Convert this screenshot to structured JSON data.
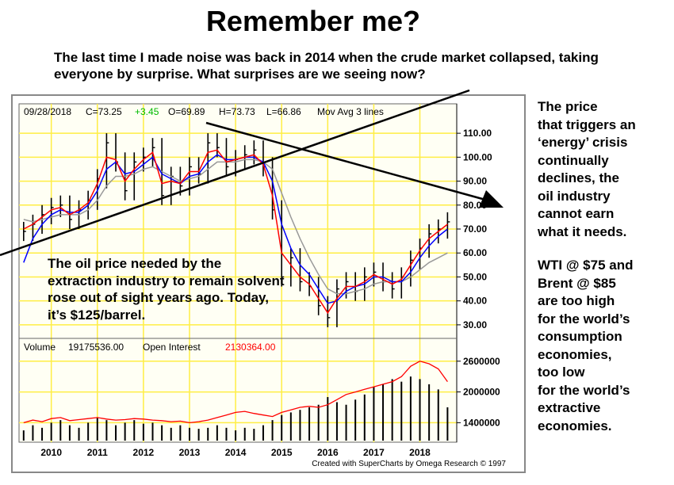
{
  "headline": "Remember me?",
  "intro": "The last time I made noise was back in 2014 when the crude market collapsed, taking everyone by surprise.  What surprises are we seeing now?",
  "sidebar": {
    "lines_a": [
      "The price",
      "that triggers an",
      "‘energy’ crisis",
      "continually",
      "declines, the",
      "oil industry",
      "cannot earn",
      "what it needs."
    ],
    "lines_b": [
      "WTI @ $75 and",
      "Brent @ $85",
      "are too high",
      "for the world’s",
      "consumption",
      "economies,",
      "too low",
      "for the world’s",
      "extractive",
      "economies."
    ]
  },
  "note": "The oil price needed by the extraction industry to remain solvent rose out of sight years ago. Today, it’s $125/barrel.",
  "colors": {
    "chart_bg": "#fffff4",
    "grid": "#ffee44",
    "price_bars": "#000000",
    "ma_fast": "#ff0000",
    "ma_mid": "#0000ff",
    "ma_slow": "#999999",
    "change_positive": "#00bb00",
    "open_interest_value": "#ff0000",
    "volume_bars": "#000000",
    "open_interest_line": "#ff0000"
  },
  "chart_data": {
    "type": "line",
    "header": {
      "date": "09/28/2018",
      "close": "C=73.25",
      "change": "+3.45",
      "open": "O=69.89",
      "high": "H=73.73",
      "low": "L=66.86",
      "studies": "Mov Avg 3 lines"
    },
    "x_tick_labels": [
      "2010",
      "2011",
      "2012",
      "2013",
      "2014",
      "2015",
      "2016",
      "2017",
      "2018"
    ],
    "price_panel": {
      "y_tick_labels": [
        "110.00",
        "100.00",
        "90.00",
        "80.00",
        "70.00",
        "60.00",
        "50.00",
        "40.00",
        "30.00"
      ],
      "ylim": [
        25,
        116
      ],
      "x": [
        2009.4,
        2009.6,
        2009.8,
        2010.0,
        2010.2,
        2010.4,
        2010.6,
        2010.8,
        2011.0,
        2011.2,
        2011.4,
        2011.6,
        2011.8,
        2012.0,
        2012.2,
        2012.4,
        2012.6,
        2012.8,
        2013.0,
        2013.2,
        2013.4,
        2013.6,
        2013.8,
        2014.0,
        2014.2,
        2014.4,
        2014.6,
        2014.8,
        2015.0,
        2015.2,
        2015.4,
        2015.6,
        2015.8,
        2016.0,
        2016.2,
        2016.4,
        2016.6,
        2016.8,
        2017.0,
        2017.2,
        2017.4,
        2017.6,
        2017.8,
        2018.0,
        2018.2,
        2018.4,
        2018.6
      ],
      "close": [
        69,
        72,
        76,
        79,
        80,
        74,
        78,
        82,
        91,
        106,
        98,
        86,
        98,
        100,
        104,
        84,
        92,
        88,
        96,
        93,
        106,
        104,
        96,
        99,
        101,
        103,
        96,
        78,
        50,
        58,
        48,
        46,
        38,
        33,
        45,
        48,
        44,
        50,
        52,
        48,
        45,
        50,
        57,
        62,
        68,
        70,
        73
      ],
      "ma_fast": [
        70,
        72,
        75,
        78,
        79,
        76,
        78,
        81,
        89,
        100,
        99,
        90,
        95,
        99,
        102,
        89,
        90,
        89,
        94,
        94,
        102,
        103,
        98,
        99,
        100,
        101,
        97,
        84,
        60,
        55,
        50,
        47,
        41,
        35,
        41,
        46,
        46,
        48,
        51,
        49,
        47,
        49,
        55,
        61,
        66,
        69,
        72
      ],
      "ma_mid": [
        56,
        66,
        72,
        76,
        78,
        77,
        77,
        80,
        86,
        95,
        98,
        93,
        94,
        97,
        100,
        93,
        91,
        89,
        92,
        93,
        98,
        101,
        99,
        99,
        100,
        100,
        98,
        90,
        72,
        62,
        55,
        51,
        45,
        39,
        40,
        44,
        46,
        47,
        50,
        50,
        48,
        48,
        52,
        58,
        63,
        67,
        70
      ],
      "ma_slow": [
        74,
        73,
        74,
        75,
        76,
        76,
        76,
        78,
        82,
        88,
        92,
        92,
        93,
        95,
        96,
        94,
        92,
        90,
        91,
        92,
        95,
        98,
        98,
        98,
        99,
        99,
        98,
        95,
        85,
        75,
        66,
        58,
        51,
        45,
        43,
        43,
        44,
        45,
        47,
        48,
        48,
        48,
        50,
        53,
        56,
        58,
        60
      ]
    },
    "volume_panel": {
      "label": "Volume",
      "volume_value": "19175536.00",
      "open_interest_label": "Open Interest",
      "open_interest_value": "2130364.00",
      "y_tick_labels": [
        "2600000",
        "2000000",
        "1400000"
      ],
      "ylim": [
        1050000,
        2720000
      ],
      "x": [
        2009.4,
        2009.6,
        2009.8,
        2010.0,
        2010.2,
        2010.4,
        2010.6,
        2010.8,
        2011.0,
        2011.2,
        2011.4,
        2011.6,
        2011.8,
        2012.0,
        2012.2,
        2012.4,
        2012.6,
        2012.8,
        2013.0,
        2013.2,
        2013.4,
        2013.6,
        2013.8,
        2014.0,
        2014.2,
        2014.4,
        2014.6,
        2014.8,
        2015.0,
        2015.2,
        2015.4,
        2015.6,
        2015.8,
        2016.0,
        2016.2,
        2016.4,
        2016.6,
        2016.8,
        2017.0,
        2017.2,
        2017.4,
        2017.6,
        2017.8,
        2018.0,
        2018.2,
        2018.4,
        2018.6
      ],
      "volume": [
        1250000,
        1350000,
        1300000,
        1400000,
        1450000,
        1350000,
        1300000,
        1400000,
        1500000,
        1450000,
        1350000,
        1400000,
        1450000,
        1380000,
        1400000,
        1350000,
        1300000,
        1350000,
        1300000,
        1280000,
        1300000,
        1350000,
        1300000,
        1250000,
        1300000,
        1280000,
        1350000,
        1450000,
        1550000,
        1600000,
        1650000,
        1700000,
        1750000,
        1900000,
        1800000,
        1750000,
        1850000,
        1950000,
        2100000,
        2150000,
        2250000,
        2200000,
        2300000,
        2250000,
        2150000,
        2050000,
        1700000
      ],
      "open_interest": [
        1400000,
        1450000,
        1420000,
        1480000,
        1500000,
        1440000,
        1460000,
        1480000,
        1500000,
        1470000,
        1450000,
        1460000,
        1480000,
        1470000,
        1450000,
        1440000,
        1420000,
        1430000,
        1400000,
        1420000,
        1450000,
        1500000,
        1550000,
        1600000,
        1620000,
        1580000,
        1550000,
        1520000,
        1600000,
        1650000,
        1700000,
        1720000,
        1700000,
        1750000,
        1850000,
        1950000,
        2000000,
        2050000,
        2100000,
        2150000,
        2200000,
        2300000,
        2500000,
        2600000,
        2550000,
        2450000,
        2200000
      ]
    },
    "footer": "Created with SuperCharts by Omega Research © 1997",
    "annotations": [
      "uptrend support line",
      "downtrend arrow"
    ]
  }
}
